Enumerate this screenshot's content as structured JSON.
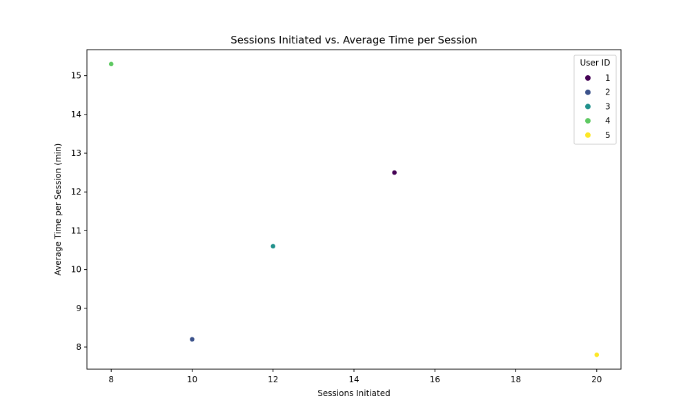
{
  "chart_data": {
    "type": "scatter",
    "title": "Sessions Initiated vs. Average Time per Session",
    "xlabel": "Sessions Initiated",
    "ylabel": "Average Time per Session (min)",
    "xlim": [
      7.4,
      20.6
    ],
    "ylim": [
      7.43,
      15.67
    ],
    "xticks": [
      8,
      10,
      12,
      14,
      16,
      18,
      20
    ],
    "yticks": [
      8,
      9,
      10,
      11,
      12,
      13,
      14,
      15
    ],
    "grid": false,
    "legend": {
      "title": "User ID",
      "placement": "top-right"
    },
    "series": [
      {
        "name": "1",
        "color": "#440154",
        "x": [
          15
        ],
        "y": [
          12.5
        ]
      },
      {
        "name": "2",
        "color": "#3b528b",
        "x": [
          10
        ],
        "y": [
          8.2
        ]
      },
      {
        "name": "3",
        "color": "#21918c",
        "x": [
          12
        ],
        "y": [
          10.6
        ]
      },
      {
        "name": "4",
        "color": "#5ec962",
        "x": [
          8
        ],
        "y": [
          15.3
        ]
      },
      {
        "name": "5",
        "color": "#fde725",
        "x": [
          20
        ],
        "y": [
          7.8
        ]
      }
    ]
  }
}
